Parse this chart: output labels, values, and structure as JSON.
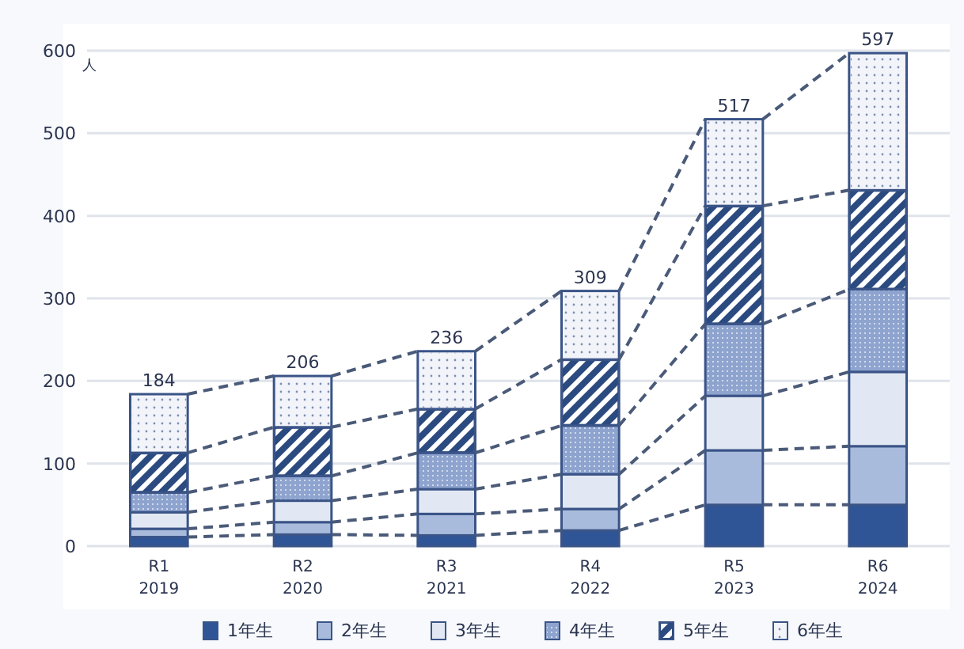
{
  "chart_data": {
    "type": "bar",
    "stacked": true,
    "ylabel": "人",
    "categories": [
      "R1\n2019",
      "R2\n2020",
      "R3\n2021",
      "R4\n2022",
      "R5\n2023",
      "R6\n2024"
    ],
    "series": [
      {
        "name": "1年生",
        "color": "#2f5597",
        "values": [
          11,
          14,
          13,
          19,
          50,
          50
        ]
      },
      {
        "name": "2年生",
        "color": "#a9bbdc",
        "values": [
          10,
          15,
          26,
          26,
          66,
          71
        ]
      },
      {
        "name": "3年生",
        "color": "#e2e8f3",
        "values": [
          20,
          26,
          30,
          42,
          66,
          90
        ]
      },
      {
        "name": "4年生",
        "color": "#8ea4cf",
        "values": [
          24,
          30,
          44,
          59,
          87,
          100
        ]
      },
      {
        "name": "5年生",
        "color": "#2b4a80",
        "values": [
          48,
          59,
          53,
          80,
          143,
          120
        ]
      },
      {
        "name": "6年生",
        "color": "#f2f4f9",
        "values": [
          71,
          62,
          70,
          83,
          105,
          166
        ]
      }
    ],
    "totals": [
      "184",
      "206",
      "236",
      "309",
      "517",
      "597"
    ],
    "ylim": [
      0,
      600
    ],
    "yticks": [
      0,
      100,
      200,
      300,
      400,
      500,
      600
    ],
    "grid": "y",
    "legend": "bottom"
  }
}
